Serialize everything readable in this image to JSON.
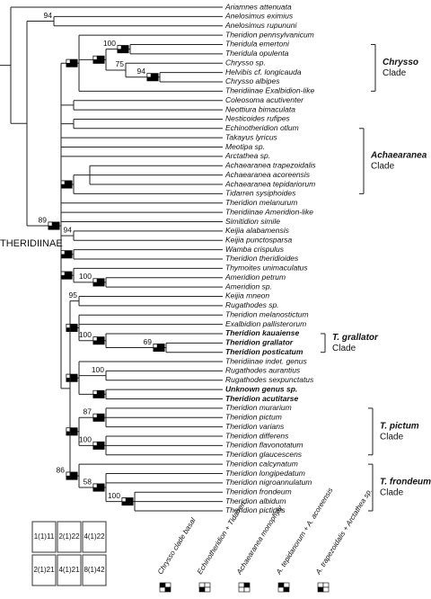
{
  "clade_label": "THERIDIINAE",
  "taxa": [
    "Ariamnes attenuata",
    "Anelosimus eximius",
    "Anelosimus rupununi",
    "Theridion pennsylvanicum",
    "Theridula emertoni",
    "Theridula opulenta",
    "Chrysso sp.",
    "Helvibis cf. longicauda",
    "Chrysso albipes",
    "Theridiinae Exalbidion-like",
    "Coleosoma acutiventer",
    "Neottiura bimaculata",
    "Nesticoides rufipes",
    "Echinotheridion otlum",
    "Takayus lyricus",
    "Meotipa sp.",
    "Arctathea sp.",
    "Achaearanea trapezoidalis",
    "Achaearanea acoreensis",
    "Achaearanea tepidariorum",
    "Tidarren sysiphoides",
    "Theridion melanurum",
    "Theridiinae Ameridion-like",
    "Simitidion simile",
    "Keijia alabamensis",
    "Keijia punctosparsa",
    "Wamba crispulus",
    "Theridion theridioides",
    "Thymoites unimaculatus",
    "Ameridion petrum",
    "Ameridion sp.",
    "Keijia mneon",
    "Rugathodes sp.",
    "Theridion melanostictum",
    "Exalbidion pallisterorum",
    "Theridion kauaiense",
    "Theridion grallator",
    "Theridion posticatum",
    "Theridiinae indet. genus",
    "Rugathodes aurantius",
    "Rugathodes sexpunctatus",
    "Unknown genus sp.",
    "Theridion acutitarse",
    "Theridion murarium",
    "Theridion pictum",
    "Theridion varians",
    "Theridion differens",
    "Theridion flavonotatum",
    "Theridion glaucescens",
    "Theridion calcynatum",
    "Theridion longipedatum",
    "Theridion nigroannulatum",
    "Theridion frondeum",
    "Theridion albidum",
    "Theridion pictipes"
  ],
  "support": [
    "94",
    "100",
    "75",
    "94",
    "89",
    "94",
    "100",
    "95",
    "100",
    "69",
    "100",
    "87",
    "100",
    "86",
    "58",
    "100"
  ],
  "clades": [
    {
      "name": "Chrysso",
      "suffix": "Clade"
    },
    {
      "name": "Achaearanea",
      "suffix": "Clade"
    },
    {
      "name": "T. grallator",
      "suffix": "Clade"
    },
    {
      "name": "T. pictum",
      "suffix": "Clade"
    },
    {
      "name": "T. frondeum",
      "suffix": "Clade"
    }
  ],
  "legend": {
    "cells": [
      "1(1)11",
      "2(1)22",
      "4(1)22",
      "2(1)21",
      "4(1)21",
      "8(1)42"
    ],
    "characters": [
      "Chrysso clade basal",
      "Echinotheridion + Tidarren",
      "Achaearanea monophyly",
      "A. tepidariorum + A. acoreensis",
      "A. trapezoidalis + Arctathea sp."
    ]
  }
}
